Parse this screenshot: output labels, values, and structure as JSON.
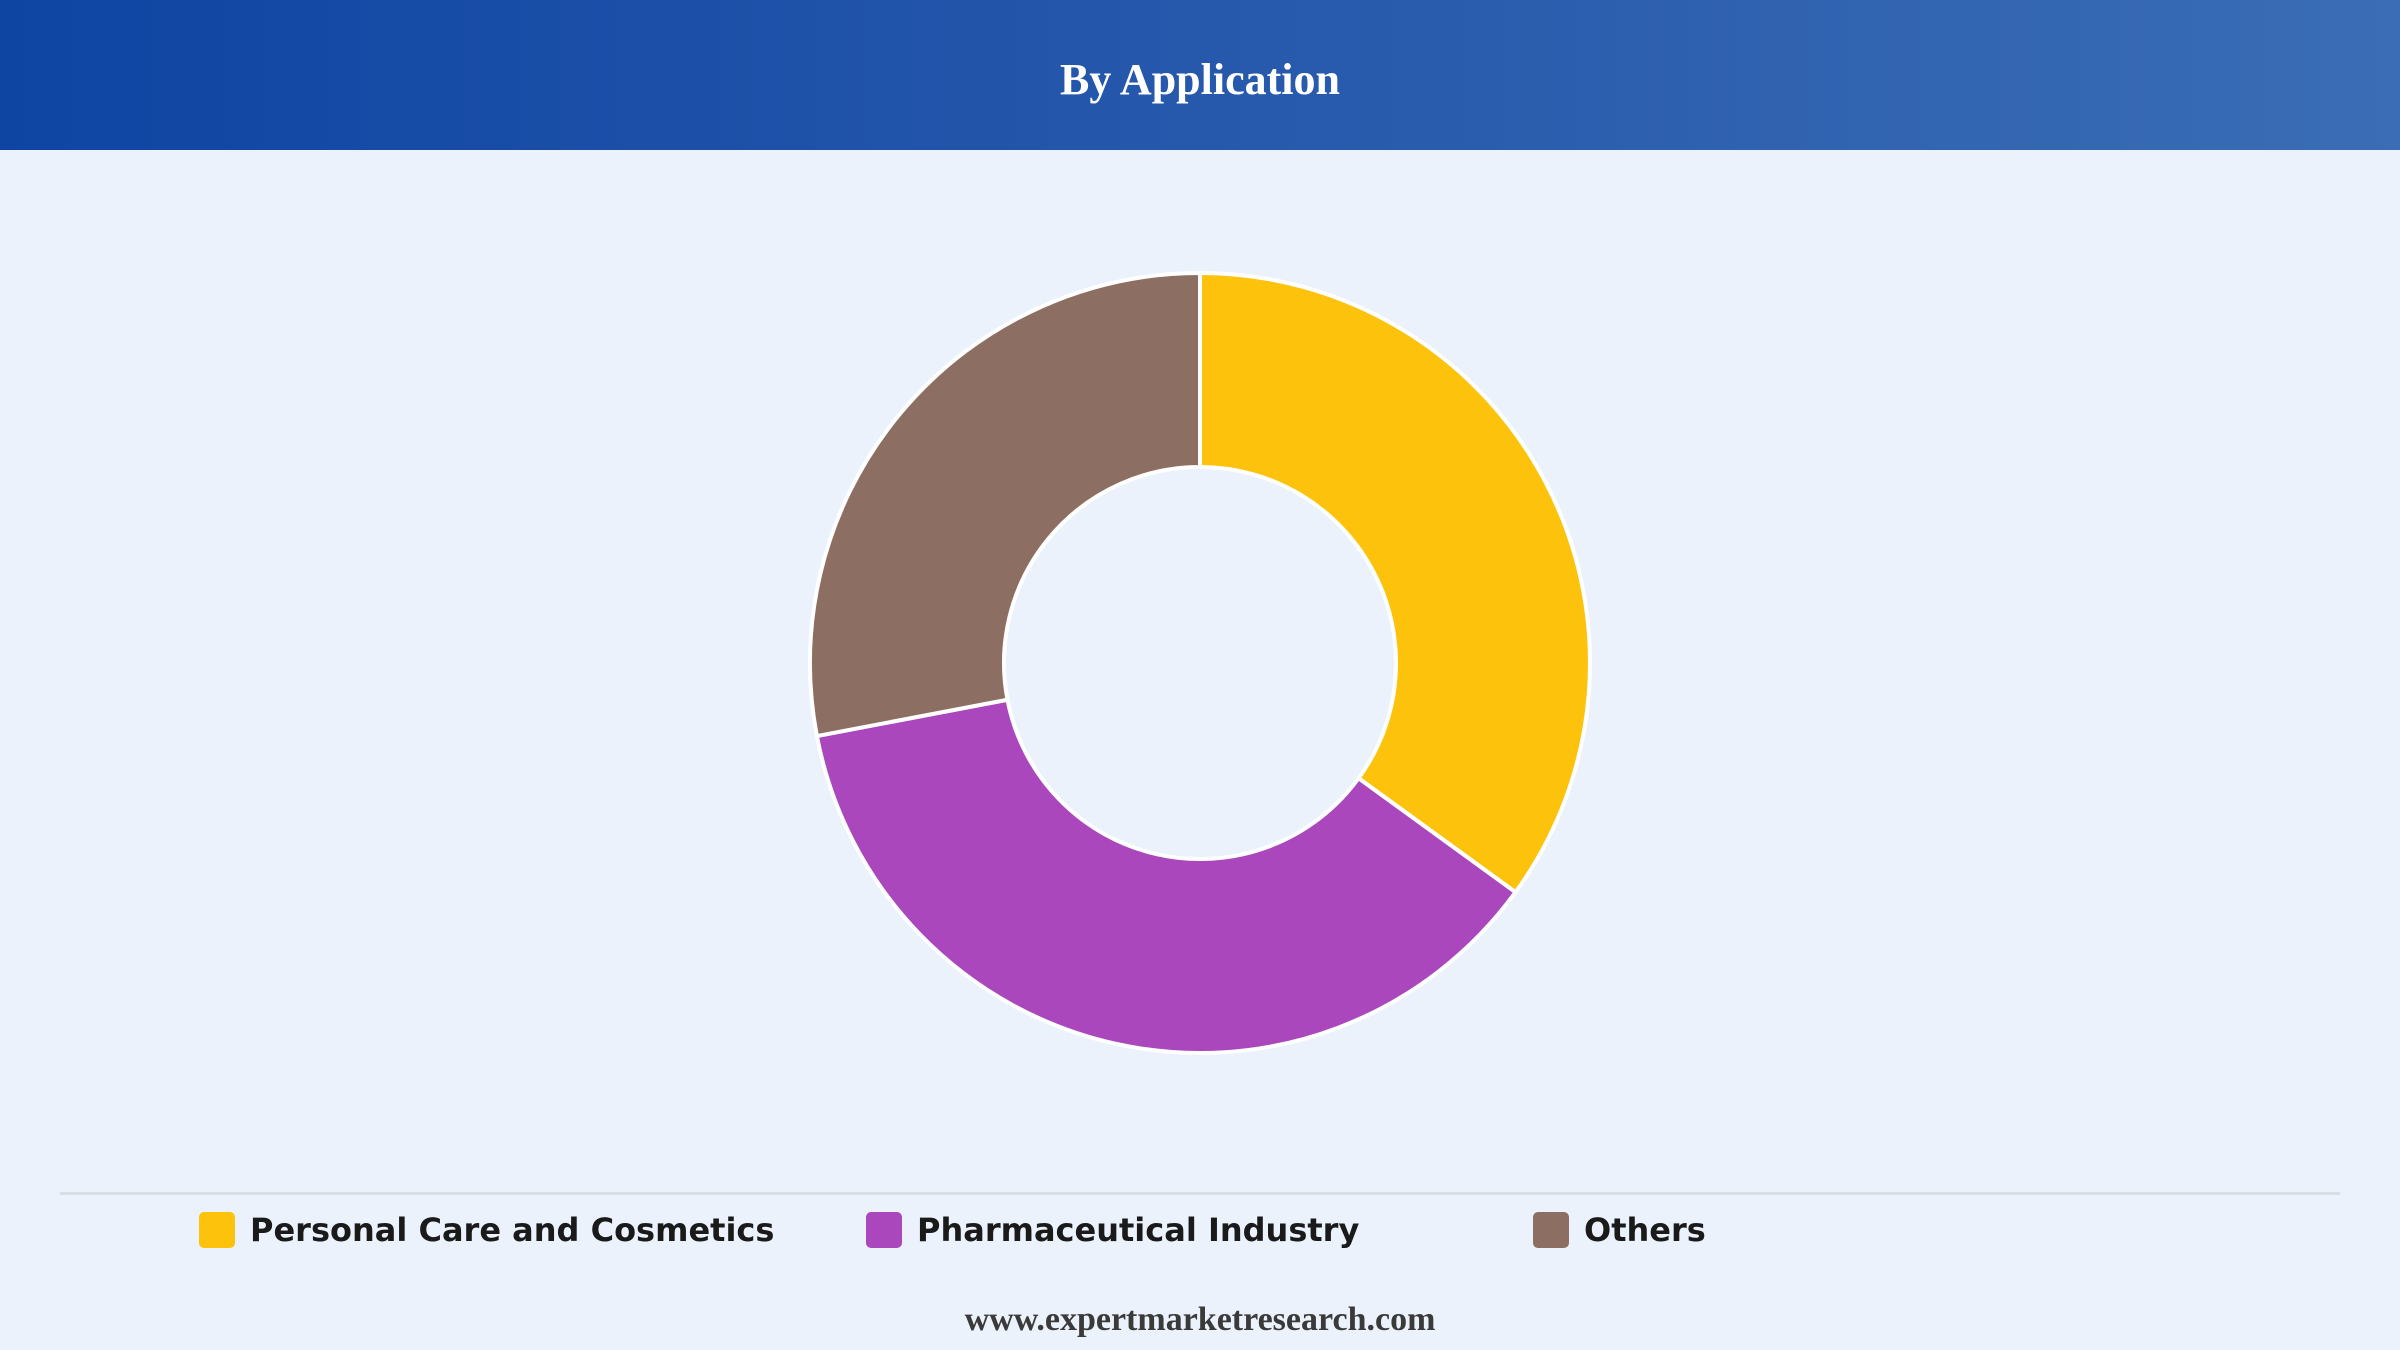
{
  "header": {
    "title": "By Application"
  },
  "chart_data": {
    "type": "pie",
    "donut": true,
    "start_angle_deg": 0,
    "direction": "clockwise",
    "categories": [
      "Personal Care and Cosmetics",
      "Pharmaceutical Industry",
      "Others"
    ],
    "values": [
      35,
      37,
      28
    ],
    "colors": [
      "#fdc20c",
      "#aa47bc",
      "#8d6e63"
    ],
    "legend": {
      "position": "bottom",
      "entries": [
        {
          "label": "Personal Care and Cosmetics",
          "color": "#fdc20c"
        },
        {
          "label": "Pharmaceutical Industry",
          "color": "#aa47bc"
        },
        {
          "label": "Others",
          "color": "#8d6e63"
        }
      ]
    }
  },
  "footer": {
    "website": "www.expertmarketresearch.com"
  }
}
